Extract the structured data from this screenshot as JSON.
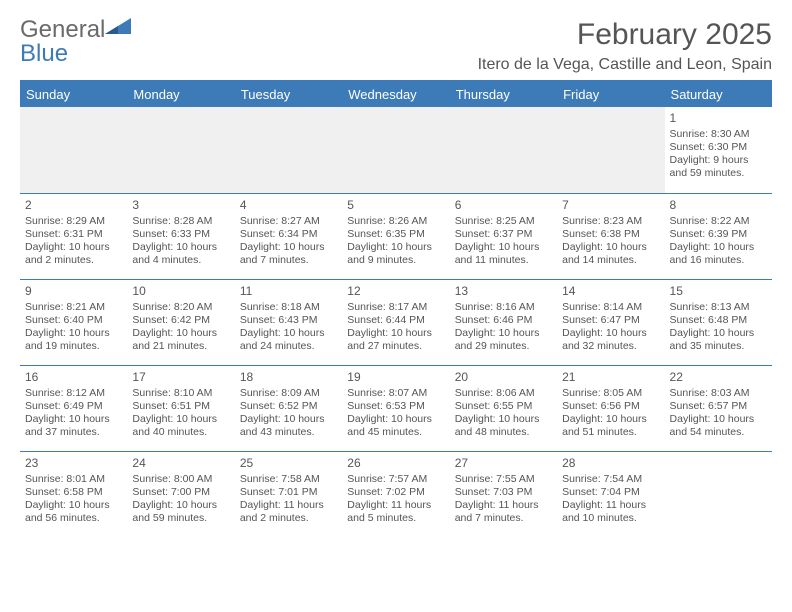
{
  "logo": {
    "word1": "General",
    "word2": "Blue",
    "fill": "#3d7ab8",
    "text1_color": "#6a6a6a",
    "text2_color": "#3d7ab8"
  },
  "title": "February 2025",
  "location": "Itero de la Vega, Castille and Leon, Spain",
  "accent_color": "#3d7ab8",
  "header_bg": "#3d7ab8",
  "header_fg": "#ffffff",
  "text_color": "#555555",
  "empty_bg": "#f0f0f0",
  "weekdays": [
    "Sunday",
    "Monday",
    "Tuesday",
    "Wednesday",
    "Thursday",
    "Friday",
    "Saturday"
  ],
  "weeks": [
    [
      null,
      null,
      null,
      null,
      null,
      null,
      {
        "n": "1",
        "sunrise": "Sunrise: 8:30 AM",
        "sunset": "Sunset: 6:30 PM",
        "daylight": "Daylight: 9 hours and 59 minutes."
      }
    ],
    [
      {
        "n": "2",
        "sunrise": "Sunrise: 8:29 AM",
        "sunset": "Sunset: 6:31 PM",
        "daylight": "Daylight: 10 hours and 2 minutes."
      },
      {
        "n": "3",
        "sunrise": "Sunrise: 8:28 AM",
        "sunset": "Sunset: 6:33 PM",
        "daylight": "Daylight: 10 hours and 4 minutes."
      },
      {
        "n": "4",
        "sunrise": "Sunrise: 8:27 AM",
        "sunset": "Sunset: 6:34 PM",
        "daylight": "Daylight: 10 hours and 7 minutes."
      },
      {
        "n": "5",
        "sunrise": "Sunrise: 8:26 AM",
        "sunset": "Sunset: 6:35 PM",
        "daylight": "Daylight: 10 hours and 9 minutes."
      },
      {
        "n": "6",
        "sunrise": "Sunrise: 8:25 AM",
        "sunset": "Sunset: 6:37 PM",
        "daylight": "Daylight: 10 hours and 11 minutes."
      },
      {
        "n": "7",
        "sunrise": "Sunrise: 8:23 AM",
        "sunset": "Sunset: 6:38 PM",
        "daylight": "Daylight: 10 hours and 14 minutes."
      },
      {
        "n": "8",
        "sunrise": "Sunrise: 8:22 AM",
        "sunset": "Sunset: 6:39 PM",
        "daylight": "Daylight: 10 hours and 16 minutes."
      }
    ],
    [
      {
        "n": "9",
        "sunrise": "Sunrise: 8:21 AM",
        "sunset": "Sunset: 6:40 PM",
        "daylight": "Daylight: 10 hours and 19 minutes."
      },
      {
        "n": "10",
        "sunrise": "Sunrise: 8:20 AM",
        "sunset": "Sunset: 6:42 PM",
        "daylight": "Daylight: 10 hours and 21 minutes."
      },
      {
        "n": "11",
        "sunrise": "Sunrise: 8:18 AM",
        "sunset": "Sunset: 6:43 PM",
        "daylight": "Daylight: 10 hours and 24 minutes."
      },
      {
        "n": "12",
        "sunrise": "Sunrise: 8:17 AM",
        "sunset": "Sunset: 6:44 PM",
        "daylight": "Daylight: 10 hours and 27 minutes."
      },
      {
        "n": "13",
        "sunrise": "Sunrise: 8:16 AM",
        "sunset": "Sunset: 6:46 PM",
        "daylight": "Daylight: 10 hours and 29 minutes."
      },
      {
        "n": "14",
        "sunrise": "Sunrise: 8:14 AM",
        "sunset": "Sunset: 6:47 PM",
        "daylight": "Daylight: 10 hours and 32 minutes."
      },
      {
        "n": "15",
        "sunrise": "Sunrise: 8:13 AM",
        "sunset": "Sunset: 6:48 PM",
        "daylight": "Daylight: 10 hours and 35 minutes."
      }
    ],
    [
      {
        "n": "16",
        "sunrise": "Sunrise: 8:12 AM",
        "sunset": "Sunset: 6:49 PM",
        "daylight": "Daylight: 10 hours and 37 minutes."
      },
      {
        "n": "17",
        "sunrise": "Sunrise: 8:10 AM",
        "sunset": "Sunset: 6:51 PM",
        "daylight": "Daylight: 10 hours and 40 minutes."
      },
      {
        "n": "18",
        "sunrise": "Sunrise: 8:09 AM",
        "sunset": "Sunset: 6:52 PM",
        "daylight": "Daylight: 10 hours and 43 minutes."
      },
      {
        "n": "19",
        "sunrise": "Sunrise: 8:07 AM",
        "sunset": "Sunset: 6:53 PM",
        "daylight": "Daylight: 10 hours and 45 minutes."
      },
      {
        "n": "20",
        "sunrise": "Sunrise: 8:06 AM",
        "sunset": "Sunset: 6:55 PM",
        "daylight": "Daylight: 10 hours and 48 minutes."
      },
      {
        "n": "21",
        "sunrise": "Sunrise: 8:05 AM",
        "sunset": "Sunset: 6:56 PM",
        "daylight": "Daylight: 10 hours and 51 minutes."
      },
      {
        "n": "22",
        "sunrise": "Sunrise: 8:03 AM",
        "sunset": "Sunset: 6:57 PM",
        "daylight": "Daylight: 10 hours and 54 minutes."
      }
    ],
    [
      {
        "n": "23",
        "sunrise": "Sunrise: 8:01 AM",
        "sunset": "Sunset: 6:58 PM",
        "daylight": "Daylight: 10 hours and 56 minutes."
      },
      {
        "n": "24",
        "sunrise": "Sunrise: 8:00 AM",
        "sunset": "Sunset: 7:00 PM",
        "daylight": "Daylight: 10 hours and 59 minutes."
      },
      {
        "n": "25",
        "sunrise": "Sunrise: 7:58 AM",
        "sunset": "Sunset: 7:01 PM",
        "daylight": "Daylight: 11 hours and 2 minutes."
      },
      {
        "n": "26",
        "sunrise": "Sunrise: 7:57 AM",
        "sunset": "Sunset: 7:02 PM",
        "daylight": "Daylight: 11 hours and 5 minutes."
      },
      {
        "n": "27",
        "sunrise": "Sunrise: 7:55 AM",
        "sunset": "Sunset: 7:03 PM",
        "daylight": "Daylight: 11 hours and 7 minutes."
      },
      {
        "n": "28",
        "sunrise": "Sunrise: 7:54 AM",
        "sunset": "Sunset: 7:04 PM",
        "daylight": "Daylight: 11 hours and 10 minutes."
      },
      null
    ]
  ]
}
